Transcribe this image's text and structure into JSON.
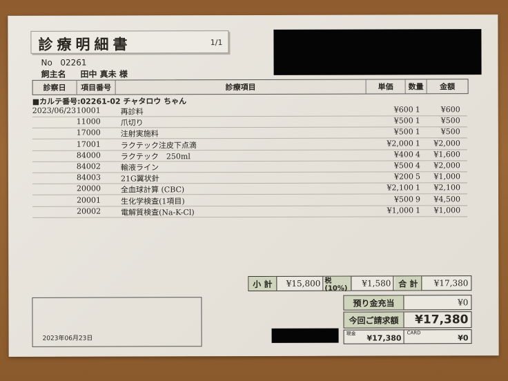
{
  "title": "診療明細書",
  "page": "1/1",
  "no_label": "No",
  "no_value": "02261",
  "owner_label": "飼主名",
  "owner_name": "田中 真未 様",
  "columns": [
    "診察日",
    "項目番号",
    "診療項目",
    "単価",
    "数量",
    "金額"
  ],
  "karte": "■カルテ番号:02261-02 チャタロウ ちゃん",
  "rows": [
    {
      "date": "2023/06/23",
      "code": "10001",
      "item": "再診料",
      "price": "¥600",
      "qty": "1",
      "amount": "¥600"
    },
    {
      "date": "",
      "code": "11000",
      "item": "爪切り",
      "price": "¥500",
      "qty": "1",
      "amount": "¥500"
    },
    {
      "date": "",
      "code": "17000",
      "item": "注射実施料",
      "price": "¥500",
      "qty": "1",
      "amount": "¥500"
    },
    {
      "date": "",
      "code": "17001",
      "item": "ラクテック注皮下点滴",
      "price": "¥2,000",
      "qty": "1",
      "amount": "¥2,000"
    },
    {
      "date": "",
      "code": "84000",
      "item": "ラクテック　250ml",
      "price": "¥400",
      "qty": "4",
      "amount": "¥1,600"
    },
    {
      "date": "",
      "code": "84002",
      "item": "輸液ライン",
      "price": "¥500",
      "qty": "4",
      "amount": "¥2,000"
    },
    {
      "date": "",
      "code": "84003",
      "item": "21G翼状針",
      "price": "¥200",
      "qty": "5",
      "amount": "¥1,000"
    },
    {
      "date": "",
      "code": "20000",
      "item": "全血球計算 (CBC)",
      "price": "¥2,100",
      "qty": "1",
      "amount": "¥2,100"
    },
    {
      "date": "",
      "code": "20001",
      "item": "生化学検査(1項目)",
      "price": "¥500",
      "qty": "9",
      "amount": "¥4,500"
    },
    {
      "date": "",
      "code": "20002",
      "item": "電解質検査(Na-K-Cl)",
      "price": "¥1,000",
      "qty": "1",
      "amount": "¥1,000"
    }
  ],
  "totals": {
    "subtotal_label": "小 計",
    "subtotal": "¥15,800",
    "tax_label": "税(10%)",
    "tax": "¥1,580",
    "total_label": "合 計",
    "total": "¥17,380",
    "deposit_label": "預り金充当",
    "deposit": "¥0",
    "billed_label": "今回ご請求額",
    "billed": "¥17,380",
    "cash_label": "現金",
    "cash": "¥17,380",
    "card_label": "CARD",
    "card": "¥0"
  },
  "issue_date": "2023年06月23日"
}
